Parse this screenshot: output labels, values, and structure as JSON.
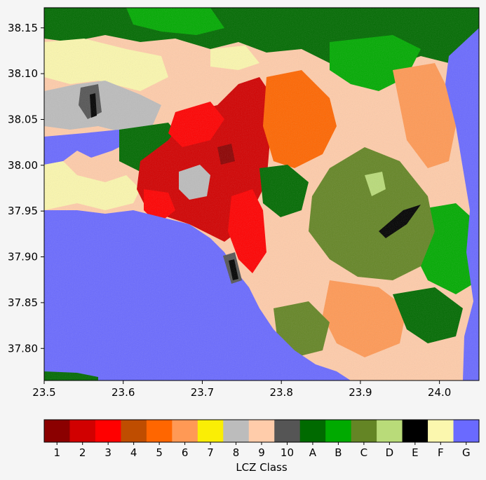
{
  "map": {
    "x_ticks": [
      "23.5",
      "23.6",
      "23.7",
      "23.8",
      "23.9",
      "24.0"
    ],
    "y_ticks": [
      "38.15",
      "38.10",
      "38.05",
      "38.00",
      "37.95",
      "37.90",
      "37.85",
      "37.80"
    ],
    "x_range": [
      23.5,
      24.05
    ],
    "y_range": [
      37.765,
      38.172
    ]
  },
  "colorbar": {
    "title": "LCZ Class",
    "classes": [
      {
        "label": "1",
        "color": "#8b0000"
      },
      {
        "label": "2",
        "color": "#d10000"
      },
      {
        "label": "3",
        "color": "#ff0000"
      },
      {
        "label": "4",
        "color": "#bf4d00"
      },
      {
        "label": "5",
        "color": "#ff6600"
      },
      {
        "label": "6",
        "color": "#ff9955"
      },
      {
        "label": "7",
        "color": "#faee05"
      },
      {
        "label": "8",
        "color": "#bcbcbc"
      },
      {
        "label": "9",
        "color": "#ffccaa"
      },
      {
        "label": "10",
        "color": "#555555"
      },
      {
        "label": "A",
        "color": "#006a00"
      },
      {
        "label": "B",
        "color": "#00aa00"
      },
      {
        "label": "C",
        "color": "#648525"
      },
      {
        "label": "D",
        "color": "#b9db79"
      },
      {
        "label": "E",
        "color": "#000000"
      },
      {
        "label": "F",
        "color": "#fbf7ae"
      },
      {
        "label": "G",
        "color": "#6a6aff"
      }
    ]
  }
}
